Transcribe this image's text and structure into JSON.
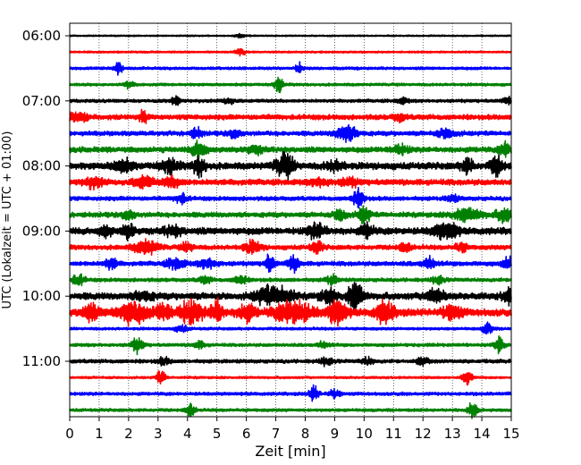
{
  "chart_data": {
    "type": "helicorder",
    "xlabel": "Zeit  [min]",
    "ylabel": "UTC (Lokalzeit = UTC + 01:00)",
    "xlim": [
      0,
      15
    ],
    "x_ticks": [
      0,
      1,
      2,
      3,
      4,
      5,
      6,
      7,
      8,
      9,
      10,
      11,
      12,
      13,
      14,
      15
    ],
    "y_tick_labels": [
      "06:00",
      "07:00",
      "08:00",
      "09:00",
      "10:00",
      "11:00"
    ],
    "trace_start": "06:00",
    "trace_interval_min": 15,
    "trace_count": 24,
    "grid": "vertical dotted at each minute",
    "colors": [
      "#000000",
      "#ff0000",
      "#0000ff",
      "#008000"
    ],
    "traces": [
      {
        "start": "06:00",
        "noise": 0.6,
        "events": [
          [
            5.8,
            1.5,
            0.2
          ]
        ]
      },
      {
        "start": "06:15",
        "noise": 0.8,
        "events": [
          [
            5.8,
            4.0,
            0.15
          ]
        ]
      },
      {
        "start": "06:30",
        "noise": 1.2,
        "events": [
          [
            1.65,
            6.0,
            0.12
          ],
          [
            7.8,
            5.0,
            0.12
          ]
        ]
      },
      {
        "start": "06:45",
        "noise": 1.2,
        "events": [
          [
            2.0,
            3.5,
            0.15
          ],
          [
            7.1,
            6.0,
            0.15
          ]
        ]
      },
      {
        "start": "07:00",
        "noise": 1.4,
        "events": [
          [
            3.6,
            4.0,
            0.15
          ],
          [
            5.4,
            2.5,
            0.2
          ],
          [
            11.3,
            2.5,
            0.2
          ],
          [
            14.9,
            3.0,
            0.2
          ]
        ]
      },
      {
        "start": "07:15",
        "noise": 2.2,
        "events": [
          [
            0.3,
            4.0,
            0.3
          ],
          [
            2.5,
            5.0,
            0.15
          ],
          [
            11.2,
            3.0,
            0.2
          ]
        ]
      },
      {
        "start": "07:30",
        "noise": 2.0,
        "events": [
          [
            4.3,
            4.0,
            0.2
          ],
          [
            5.6,
            3.5,
            0.2
          ],
          [
            9.4,
            7.0,
            0.35
          ],
          [
            12.8,
            4.0,
            0.3
          ]
        ]
      },
      {
        "start": "07:45",
        "noise": 2.4,
        "events": [
          [
            4.4,
            7.0,
            0.25
          ],
          [
            6.3,
            3.0,
            0.3
          ],
          [
            11.2,
            4.0,
            0.3
          ],
          [
            14.8,
            6.0,
            0.2
          ]
        ]
      },
      {
        "start": "08:00",
        "noise": 3.0,
        "events": [
          [
            1.8,
            5.0,
            0.3
          ],
          [
            3.4,
            5.0,
            0.3
          ],
          [
            4.4,
            8.0,
            0.2
          ],
          [
            7.3,
            10.0,
            0.3
          ],
          [
            9.0,
            4.0,
            0.3
          ],
          [
            13.5,
            6.0,
            0.2
          ],
          [
            14.5,
            8.0,
            0.2
          ]
        ]
      },
      {
        "start": "08:15",
        "noise": 2.6,
        "events": [
          [
            0.8,
            4.0,
            0.3
          ],
          [
            2.5,
            5.0,
            0.3
          ],
          [
            3.5,
            4.0,
            0.3
          ],
          [
            8.5,
            3.0,
            0.3
          ],
          [
            9.5,
            3.0,
            0.3
          ]
        ]
      },
      {
        "start": "08:30",
        "noise": 1.8,
        "events": [
          [
            3.8,
            4.0,
            0.2
          ],
          [
            9.8,
            7.0,
            0.2
          ],
          [
            13.0,
            3.0,
            0.2
          ]
        ]
      },
      {
        "start": "08:45",
        "noise": 2.2,
        "events": [
          [
            2.0,
            4.0,
            0.2
          ],
          [
            9.2,
            6.0,
            0.2
          ],
          [
            10.0,
            7.0,
            0.2
          ],
          [
            13.5,
            5.0,
            0.5
          ],
          [
            14.8,
            6.0,
            0.3
          ]
        ]
      },
      {
        "start": "09:00",
        "noise": 3.0,
        "events": [
          [
            1.2,
            5.0,
            0.2
          ],
          [
            2.0,
            6.0,
            0.2
          ],
          [
            3.5,
            4.0,
            0.3
          ],
          [
            8.4,
            6.0,
            0.3
          ],
          [
            10.1,
            6.0,
            0.2
          ],
          [
            12.6,
            5.0,
            0.3
          ],
          [
            13.0,
            6.0,
            0.2
          ]
        ]
      },
      {
        "start": "09:15",
        "noise": 2.0,
        "events": [
          [
            2.6,
            6.0,
            0.4
          ],
          [
            4.0,
            4.0,
            0.2
          ],
          [
            6.2,
            5.0,
            0.3
          ],
          [
            8.4,
            5.0,
            0.2
          ],
          [
            11.4,
            4.0,
            0.2
          ],
          [
            13.3,
            4.0,
            0.2
          ]
        ]
      },
      {
        "start": "09:30",
        "noise": 2.0,
        "events": [
          [
            1.4,
            5.0,
            0.2
          ],
          [
            3.6,
            5.0,
            0.3
          ],
          [
            4.7,
            4.0,
            0.3
          ],
          [
            6.8,
            8.0,
            0.15
          ],
          [
            7.6,
            6.0,
            0.2
          ],
          [
            12.2,
            5.0,
            0.2
          ],
          [
            14.9,
            5.0,
            0.2
          ]
        ]
      },
      {
        "start": "09:45",
        "noise": 1.6,
        "events": [
          [
            0.3,
            5.0,
            0.2
          ],
          [
            4.6,
            3.0,
            0.2
          ],
          [
            5.8,
            4.0,
            0.2
          ],
          [
            8.9,
            4.0,
            0.2
          ],
          [
            12.5,
            3.0,
            0.2
          ]
        ]
      },
      {
        "start": "10:00",
        "noise": 3.0,
        "events": [
          [
            2.5,
            4.0,
            0.3
          ],
          [
            6.7,
            7.0,
            0.4
          ],
          [
            7.3,
            6.0,
            0.3
          ],
          [
            8.8,
            5.0,
            0.3
          ],
          [
            9.7,
            12.0,
            0.25
          ],
          [
            12.4,
            6.0,
            0.3
          ],
          [
            14.9,
            6.0,
            0.2
          ]
        ]
      },
      {
        "start": "10:15",
        "noise": 3.2,
        "events": [
          [
            0.7,
            6.0,
            0.3
          ],
          [
            2.1,
            9.0,
            0.5
          ],
          [
            3.2,
            7.0,
            0.3
          ],
          [
            4.1,
            10.0,
            0.4
          ],
          [
            5.0,
            11.0,
            0.2
          ],
          [
            6.0,
            7.0,
            0.3
          ],
          [
            7.6,
            10.0,
            0.6
          ],
          [
            9.1,
            11.0,
            0.3
          ],
          [
            10.7,
            9.0,
            0.3
          ],
          [
            13.0,
            6.0,
            0.3
          ]
        ]
      },
      {
        "start": "10:30",
        "noise": 1.2,
        "events": [
          [
            3.8,
            3.0,
            0.2
          ],
          [
            14.2,
            6.0,
            0.15
          ]
        ]
      },
      {
        "start": "10:45",
        "noise": 1.4,
        "events": [
          [
            2.3,
            6.0,
            0.2
          ],
          [
            4.4,
            3.0,
            0.2
          ],
          [
            8.6,
            2.5,
            0.2
          ],
          [
            14.6,
            7.0,
            0.15
          ]
        ]
      },
      {
        "start": "11:00",
        "noise": 1.6,
        "events": [
          [
            3.2,
            3.0,
            0.2
          ],
          [
            8.7,
            3.0,
            0.2
          ],
          [
            10.1,
            3.0,
            0.2
          ],
          [
            12.0,
            3.0,
            0.2
          ]
        ]
      },
      {
        "start": "11:15",
        "noise": 1.0,
        "events": [
          [
            3.1,
            6.0,
            0.15
          ],
          [
            13.5,
            7.0,
            0.15
          ]
        ]
      },
      {
        "start": "11:30",
        "noise": 1.4,
        "events": [
          [
            8.3,
            7.0,
            0.15
          ],
          [
            9.0,
            3.0,
            0.2
          ]
        ]
      },
      {
        "start": "11:45",
        "noise": 1.3,
        "events": [
          [
            4.1,
            6.0,
            0.15
          ],
          [
            13.7,
            7.0,
            0.15
          ]
        ]
      }
    ]
  }
}
